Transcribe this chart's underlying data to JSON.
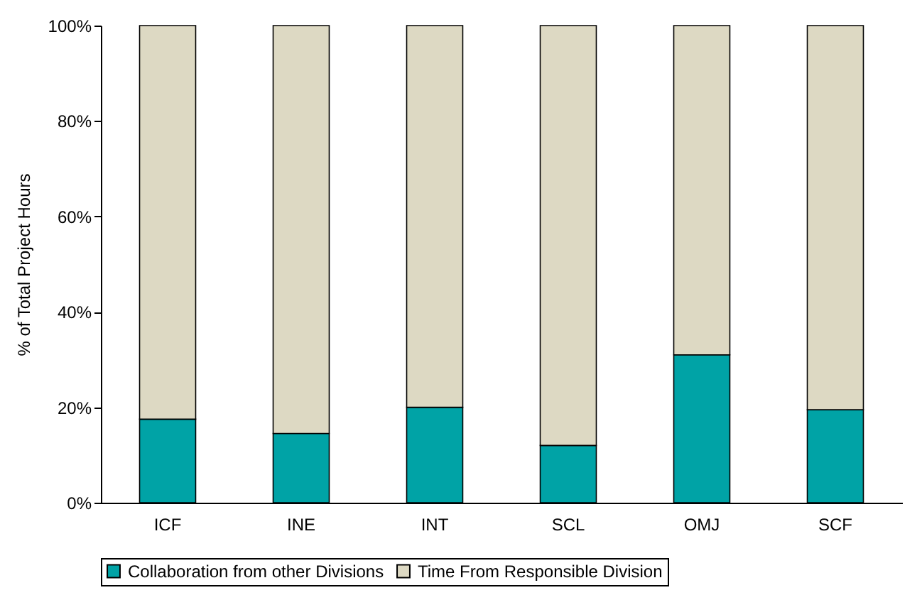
{
  "chart_data": {
    "type": "bar",
    "stacked": true,
    "ylabel": "% of Total Project Hours",
    "categories": [
      "ICF",
      "INE",
      "INT",
      "SCL",
      "OMJ",
      "SCF"
    ],
    "series": [
      {
        "name": "Collaboration from other Divisions",
        "color": "#00a3a6",
        "values": [
          17.5,
          14.5,
          20,
          12,
          31,
          19.5
        ]
      },
      {
        "name": "Time From Responsible Division",
        "color": "#ddd9c3",
        "values": [
          82.5,
          85.5,
          80,
          88,
          69,
          80.5
        ]
      }
    ],
    "ylim": [
      0,
      100
    ],
    "yticks": [
      {
        "value": 0,
        "label": "0%"
      },
      {
        "value": 20,
        "label": "20%"
      },
      {
        "value": 40,
        "label": "40%"
      },
      {
        "value": 60,
        "label": "60%"
      },
      {
        "value": 80,
        "label": "80%"
      },
      {
        "value": 100,
        "label": "100%"
      }
    ],
    "legend": "bottom"
  }
}
